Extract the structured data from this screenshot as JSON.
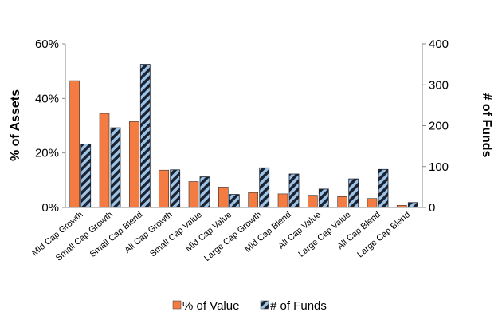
{
  "chart_data": {
    "type": "bar",
    "title": "",
    "xlabel": "",
    "categories": [
      "Mid Cap Growth",
      "Small Cap Growth",
      "Small Cap Blend",
      "All Cap Growth",
      "Small Cap Value",
      "Mid Cap Value",
      "Large Cap Growth",
      "Mid Cap Blend",
      "All Cap Value",
      "Large Cap Value",
      "All Cap Blend",
      "Large Cap Blend"
    ],
    "series": [
      {
        "name": "% of Value",
        "axis": "left",
        "color": "#f47c43",
        "values": [
          46.5,
          34.5,
          31.5,
          13.7,
          9.5,
          7.5,
          5.5,
          5.0,
          4.5,
          4.0,
          3.3,
          0.8
        ]
      },
      {
        "name": "# of Funds",
        "axis": "right",
        "color": "#9dc3e6",
        "pattern": "diagonal-stripe",
        "values": [
          155,
          195,
          350,
          92,
          75,
          32,
          97,
          82,
          45,
          70,
          93,
          12
        ]
      }
    ],
    "y_left": {
      "label": "% of Assets",
      "ylim": [
        0,
        60
      ],
      "ticks": [
        "0%",
        "20%",
        "40%",
        "60%"
      ],
      "tick_values": [
        0,
        20,
        40,
        60
      ]
    },
    "y_right": {
      "label": "# of Funds",
      "ylim": [
        0,
        400
      ],
      "ticks": [
        "0",
        "100",
        "200",
        "300",
        "400"
      ],
      "tick_values": [
        0,
        100,
        200,
        300,
        400
      ]
    },
    "grid": false,
    "legend": "bottom"
  }
}
